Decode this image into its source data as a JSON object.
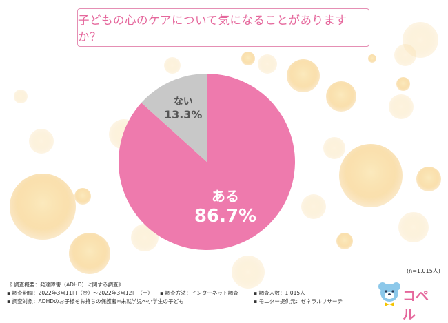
{
  "title": "子どもの心のケアについて気になることがありますか？",
  "colors": {
    "title_border": "#e58fb4",
    "title_text": "#e5679c",
    "slice_yes": "#ee7aad",
    "slice_no": "#c8c8c8",
    "bubble": "#f6d48a"
  },
  "chart_data": {
    "type": "pie",
    "slices": [
      {
        "label": "ある",
        "value": 86.7,
        "value_text": "86.7%",
        "color": "#ee7aad"
      },
      {
        "label": "ない",
        "value": 13.3,
        "value_text": "13.3%",
        "color": "#c8c8c8"
      }
    ]
  },
  "sample": "(n=1,015人)",
  "footer": {
    "heading": "《 調査概要：発達障害（ADHD）に関する調査》",
    "period": "▪ 調査期間：2022年3月11日（金）〜2022年3月12日（土）",
    "method": "▪ 調査方法：インターネット調査",
    "count": "▪ 調査人数：1,015人",
    "target": "▪ 調査対象：ADHDのお子様をお持ちの保護者※未就学児〜小学生の子ども",
    "monitor": "▪ モニター提供元：ゼネラルリサーチ"
  },
  "logo": {
    "name": "コペル",
    "icon": "bear-icon"
  }
}
